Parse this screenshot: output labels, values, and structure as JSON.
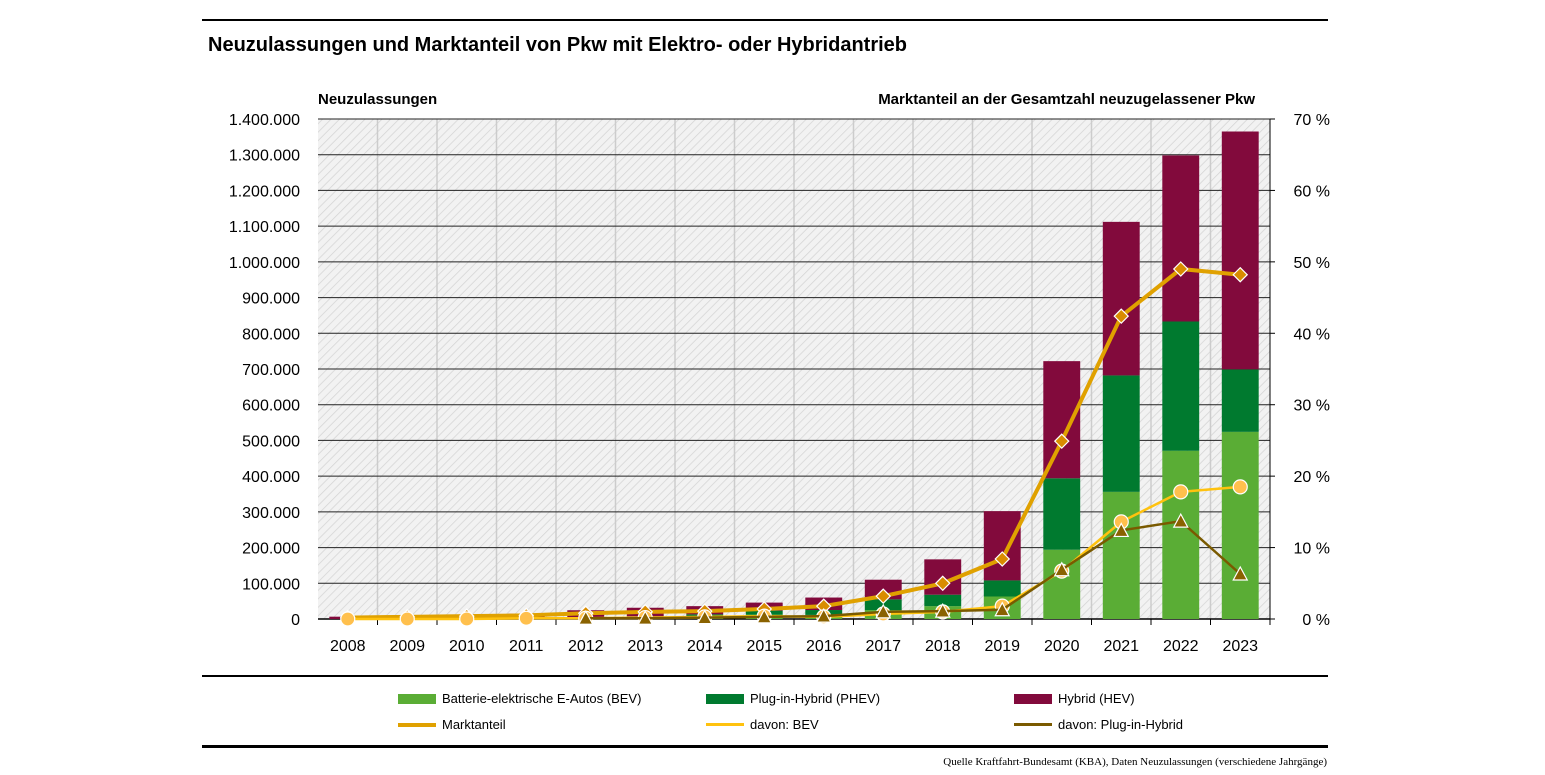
{
  "chart_data": {
    "type": "bar+line",
    "title": "Neuzulassungen und Marktanteil von Pkw mit Elektro- oder Hybridantrieb",
    "ylabel": "Neuzulassungen",
    "y2label": "Marktanteil an der Gesamtzahl neuzugelassener Pkw",
    "ylim": [
      0,
      1400000
    ],
    "y2lim": [
      0,
      70
    ],
    "yticks": [
      "0",
      "100.000",
      "200.000",
      "300.000",
      "400.000",
      "500.000",
      "600.000",
      "700.000",
      "800.000",
      "900.000",
      "1.000.000",
      "1.100.000",
      "1.200.000",
      "1.300.000",
      "1.400.000"
    ],
    "y2ticks": [
      "0 %",
      "10 %",
      "20 %",
      "30 %",
      "40 %",
      "50 %",
      "60 %",
      "70 %"
    ],
    "categories": [
      "2008",
      "2009",
      "2010",
      "2011",
      "2012",
      "2013",
      "2014",
      "2015",
      "2016",
      "2017",
      "2018",
      "2019",
      "2020",
      "2021",
      "2022",
      "2023"
    ],
    "bar_series": [
      {
        "name": "Batterie-elektrische E-Autos (BEV)",
        "color": "#5aad35",
        "values": [
          0,
          200,
          500,
          2000,
          3000,
          6000,
          8500,
          12400,
          11400,
          25000,
          36000,
          63000,
          194000,
          356000,
          471000,
          524000
        ]
      },
      {
        "name": "Plug-in-Hybrid (PHEV)",
        "color": "#007a2f",
        "values": [
          0,
          0,
          0,
          0,
          500,
          1500,
          4500,
          11000,
          13700,
          30000,
          32000,
          45000,
          200000,
          326000,
          362000,
          175000
        ]
      },
      {
        "name": "Hybrid (HEV)",
        "color": "#820a3c",
        "values": [
          6500,
          8400,
          10700,
          12600,
          21000,
          24000,
          23000,
          22500,
          35000,
          55000,
          99000,
          194000,
          328000,
          430000,
          465000,
          666000
        ]
      }
    ],
    "line_series": [
      {
        "name": "Marktanteil",
        "color": "#e0a100",
        "marker": "diamond",
        "values": [
          0.2,
          0.3,
          0.4,
          0.5,
          0.8,
          1.0,
          1.1,
          1.4,
          1.8,
          3.2,
          5.0,
          8.4,
          24.9,
          42.4,
          49.0,
          48.2
        ]
      },
      {
        "name": "davon: BEV",
        "color": "#ffc20e",
        "marker": "circle",
        "values": [
          0,
          0,
          0,
          0.1,
          0.1,
          0.2,
          0.3,
          0.4,
          0.3,
          0.7,
          1.0,
          1.8,
          6.7,
          13.6,
          17.8,
          18.5
        ]
      },
      {
        "name": "davon: Plug-in-Hybrid",
        "color": "#7a5a00",
        "marker": "triangle",
        "values": [
          null,
          null,
          null,
          null,
          0.1,
          0.1,
          0.2,
          0.3,
          0.4,
          1.0,
          1.1,
          1.3,
          6.9,
          12.4,
          13.7,
          6.3
        ]
      }
    ],
    "grid": true,
    "legend": "bottom"
  },
  "source": "Quelle Kraftfahrt-Bundesamt (KBA), Daten Neuzulassungen (verschiedene Jahrgänge)"
}
